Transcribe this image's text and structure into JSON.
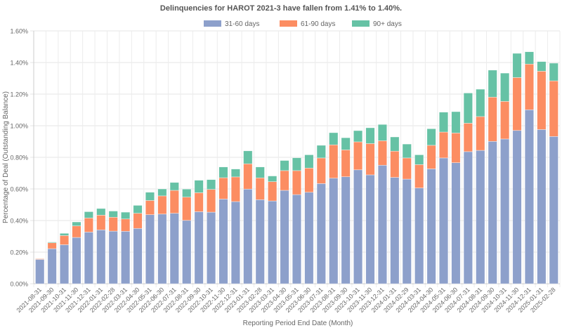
{
  "chart_data": {
    "type": "bar",
    "stacked": true,
    "title": "Delinquencies for HAROT 2021-3 have fallen from 1.41% to 1.40%.",
    "xlabel": "Reporting Period End Date (Month)",
    "ylabel": "Percentage of Deal (Outstanding Balance)",
    "ylim": [
      0,
      1.6
    ],
    "yticks": [
      "0.00%",
      "0.20%",
      "0.40%",
      "0.60%",
      "0.80%",
      "1.00%",
      "1.20%",
      "1.40%",
      "1.60%"
    ],
    "grid": true,
    "legend_position": "top",
    "categories": [
      "2021-08-31",
      "2021-09-30",
      "2021-10-31",
      "2021-11-30",
      "2021-12-31",
      "2022-01-31",
      "2022-02-28",
      "2022-03-31",
      "2022-04-30",
      "2022-05-31",
      "2022-06-30",
      "2022-07-31",
      "2022-08-31",
      "2022-09-30",
      "2022-10-31",
      "2022-11-30",
      "2022-12-31",
      "2023-01-31",
      "2023-02-28",
      "2023-03-31",
      "2023-04-30",
      "2023-05-31",
      "2023-06-30",
      "2023-07-31",
      "2023-08-31",
      "2023-09-30",
      "2023-10-31",
      "2023-11-30",
      "2023-12-31",
      "2024-01-31",
      "2024-02-29",
      "2024-03-31",
      "2024-04-30",
      "2024-05-31",
      "2024-06-30",
      "2024-07-31",
      "2024-08-31",
      "2024-09-30",
      "2024-10-31",
      "2024-11-30",
      "2024-12-31",
      "2025-01-31",
      "2025-02-28"
    ],
    "series": [
      {
        "name": "31-60 days",
        "color": "#8da0cb",
        "values": [
          0.154,
          0.222,
          0.247,
          0.293,
          0.327,
          0.341,
          0.333,
          0.332,
          0.35,
          0.437,
          0.441,
          0.446,
          0.401,
          0.456,
          0.453,
          0.536,
          0.52,
          0.599,
          0.532,
          0.524,
          0.591,
          0.564,
          0.579,
          0.634,
          0.668,
          0.677,
          0.721,
          0.689,
          0.75,
          0.673,
          0.662,
          0.606,
          0.727,
          0.796,
          0.766,
          0.836,
          0.844,
          0.901,
          0.916,
          0.97,
          1.101,
          0.976,
          0.932
        ]
      },
      {
        "name": "61-90 days",
        "color": "#fc8d62",
        "values": [
          0.004,
          0.037,
          0.058,
          0.073,
          0.089,
          0.093,
          0.088,
          0.078,
          0.096,
          0.09,
          0.115,
          0.145,
          0.147,
          0.12,
          0.144,
          0.135,
          0.156,
          0.16,
          0.138,
          0.122,
          0.125,
          0.152,
          0.153,
          0.162,
          0.211,
          0.17,
          0.177,
          0.198,
          0.155,
          0.166,
          0.134,
          0.148,
          0.149,
          0.164,
          0.188,
          0.18,
          0.214,
          0.28,
          0.238,
          0.335,
          0.289,
          0.369,
          0.352
        ]
      },
      {
        "name": "90+ days",
        "color": "#66c2a5",
        "values": [
          0.0,
          0.005,
          0.014,
          0.025,
          0.04,
          0.042,
          0.039,
          0.043,
          0.05,
          0.052,
          0.044,
          0.05,
          0.051,
          0.079,
          0.062,
          0.068,
          0.05,
          0.082,
          0.069,
          0.036,
          0.064,
          0.081,
          0.084,
          0.08,
          0.077,
          0.077,
          0.071,
          0.1,
          0.103,
          0.09,
          0.088,
          0.062,
          0.105,
          0.126,
          0.135,
          0.191,
          0.173,
          0.171,
          0.179,
          0.153,
          0.078,
          0.061,
          0.112
        ]
      }
    ]
  }
}
